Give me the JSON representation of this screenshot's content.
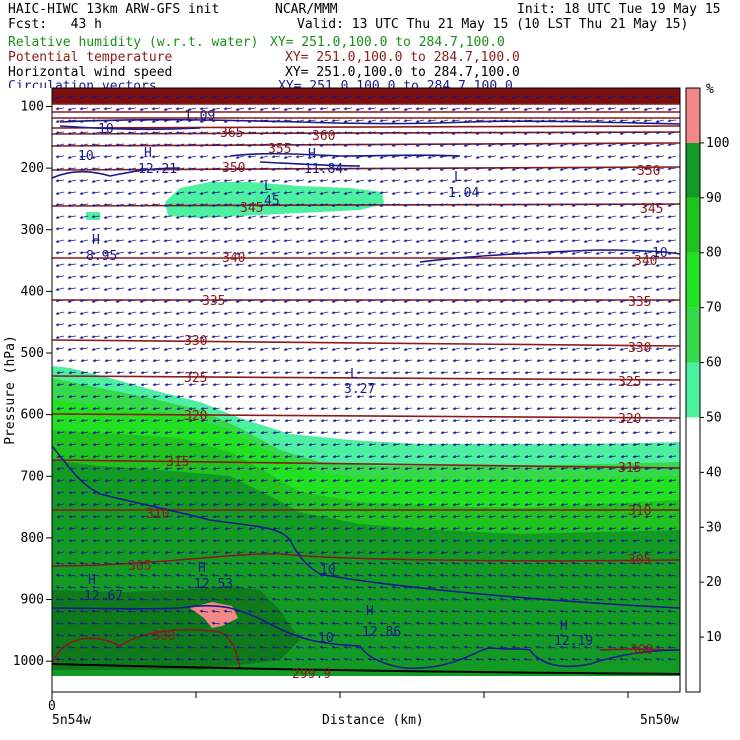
{
  "header": {
    "model": "HAIC-HIWC 13km ARW-GFS init",
    "org": "NCAR/MMM",
    "init": "Init: 18 UTC Tue 19 May 15",
    "fcst": "Fcst:   43 h",
    "valid": "Valid: 13 UTC Thu 21 May 15 (10 LST Thu 21 May 15)"
  },
  "legend": [
    {
      "name": "Relative humidity (w.r.t. water)",
      "xy": "XY= 251.0,100.0 to 284.7,100.0",
      "color": "#1a8f1a"
    },
    {
      "name": "Potential temperature",
      "xy": "XY= 251.0,100.0 to 284.7,100.0",
      "color": "#8b1a1a"
    },
    {
      "name": "Horizontal wind speed",
      "xy": "XY= 251.0,100.0 to 284.7,100.0",
      "color": "#000000"
    },
    {
      "name": "Circulation vectors",
      "xy": "XY= 251.0,100.0 to 284.7,100.0",
      "color": "#1a1a8b"
    }
  ],
  "chart_data": {
    "type": "heatmap",
    "ylabel": "Pressure (hPa)",
    "xlabel": "Distance (km)",
    "x_tick_labels": {
      "start_label": "0",
      "left": "5n54w",
      "right": "5n50w"
    },
    "y_ticks": [
      100,
      200,
      300,
      400,
      500,
      600,
      700,
      800,
      900,
      1000
    ],
    "ylim": [
      1050,
      70
    ],
    "colorbar": {
      "unit": "%",
      "ticks": [
        10,
        20,
        30,
        40,
        50,
        60,
        70,
        80,
        90,
        100
      ],
      "bands": [
        {
          "from": 0,
          "to": 50,
          "color": "#ffffff"
        },
        {
          "from": 50,
          "to": 60,
          "color": "#4cf0a0"
        },
        {
          "from": 60,
          "to": 70,
          "color": "#36d94c"
        },
        {
          "from": 70,
          "to": 80,
          "color": "#22e022"
        },
        {
          "from": 80,
          "to": 90,
          "color": "#1fc21f"
        },
        {
          "from": 90,
          "to": 100,
          "color": "#139a24"
        },
        {
          "from": 100,
          "to": 110,
          "color": "#f28888"
        }
      ]
    },
    "theta_contours": [
      {
        "value": 300,
        "label": "300"
      },
      {
        "value": 305,
        "label": "305"
      },
      {
        "value": 310,
        "label": "310"
      },
      {
        "value": 315,
        "label": "315"
      },
      {
        "value": 320,
        "label": "320"
      },
      {
        "value": 325,
        "label": "325"
      },
      {
        "value": 330,
        "label": "330"
      },
      {
        "value": 335,
        "label": "335"
      },
      {
        "value": 340,
        "label": "340"
      },
      {
        "value": 345,
        "label": "345"
      },
      {
        "value": 350,
        "label": "350"
      },
      {
        "value": 355,
        "label": "355"
      },
      {
        "value": 360,
        "label": "360"
      },
      {
        "value": 365,
        "label": "365"
      },
      {
        "value": 299.9,
        "label": "299.9"
      }
    ],
    "extrema": [
      {
        "kind": "H",
        "value": "8.95"
      },
      {
        "kind": "H",
        "value": "12.21"
      },
      {
        "kind": "H",
        "value": "11.84"
      },
      {
        "kind": "L",
        "value": "1.04"
      },
      {
        "kind": "L",
        "value": "3.27"
      },
      {
        "kind": "L",
        "value": "1.09"
      },
      {
        "kind": "L",
        "value": "45"
      },
      {
        "kind": "H",
        "value": "12.67"
      },
      {
        "kind": "H",
        "value": "12.53"
      },
      {
        "kind": "H",
        "value": "12.86"
      },
      {
        "kind": "H",
        "value": "12.19"
      }
    ],
    "wind_labels": [
      "10",
      "10",
      "10",
      "10"
    ]
  }
}
